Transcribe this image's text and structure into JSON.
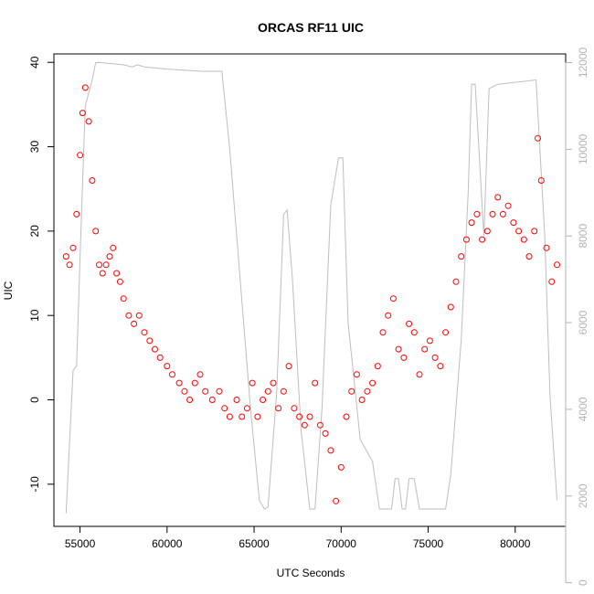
{
  "chart_data": {
    "type": "scatter",
    "title": "ORCAS RF11 UIC",
    "xlabel": "UTC Seconds",
    "ylabel": "UIC",
    "xlim": [
      53500,
      82900
    ],
    "ylim": [
      -15,
      41
    ],
    "y2lim": [
      1300,
      12200
    ],
    "x_ticks": [
      55000,
      60000,
      65000,
      70000,
      75000,
      80000
    ],
    "x_tick_labels": [
      "55000",
      "60000",
      "65000",
      "70000",
      "75000",
      "80000"
    ],
    "y_ticks": [
      -10,
      0,
      10,
      20,
      30,
      40
    ],
    "y_tick_labels": [
      "-10",
      "0",
      "10",
      "20",
      "30",
      "40"
    ],
    "y2_ticks": [
      0,
      2000,
      4000,
      6000,
      8000,
      10000,
      12000
    ],
    "y2_tick_labels": [
      "0",
      "2000",
      "4000",
      "6000",
      "8000",
      "10000",
      "12000"
    ],
    "colors": {
      "uic": "#ff0000",
      "altitude": "#bebebe",
      "axis": "#000000",
      "axis2": "#b3b3b3"
    },
    "series": [
      {
        "marker": "open-circle",
        "axis": "left",
        "x": [
          54200,
          54400,
          54600,
          54800,
          55000,
          55150,
          55300,
          55500,
          55700,
          55900,
          56100,
          56300,
          56500,
          56700,
          56900,
          57100,
          57300,
          57500,
          57800,
          58100,
          58400,
          58700,
          59000,
          59300,
          59600,
          60000,
          60300,
          60700,
          61000,
          61300,
          61600,
          61900,
          62200,
          62600,
          63000,
          63300,
          63600,
          64000,
          64300,
          64600,
          64900,
          65200,
          65500,
          65800,
          66100,
          66400,
          66700,
          67000,
          67300,
          67600,
          67900,
          68200,
          68500,
          68800,
          69100,
          69400,
          69700,
          70000,
          70300,
          70600,
          70900,
          71200,
          71500,
          71800,
          72100,
          72400,
          72700,
          73000,
          73300,
          73600,
          73900,
          74200,
          74500,
          74800,
          75100,
          75400,
          75700,
          76000,
          76300,
          76600,
          76900,
          77200,
          77500,
          77800,
          78100,
          78400,
          78700,
          79000,
          79300,
          79600,
          79900,
          80200,
          80500,
          80800,
          81100,
          81300,
          81500,
          81800,
          82100,
          82400
        ],
        "y": [
          17,
          16,
          18,
          22,
          29,
          34,
          37,
          33,
          26,
          20,
          16,
          15,
          16,
          17,
          18,
          15,
          14,
          12,
          10,
          9,
          10,
          8,
          7,
          6,
          5,
          4,
          3,
          2,
          1,
          0,
          2,
          3,
          1,
          0,
          1,
          -1,
          -2,
          0,
          -2,
          -1,
          2,
          -2,
          0,
          1,
          2,
          -1,
          1,
          4,
          -1,
          -2,
          -3,
          -2,
          2,
          -3,
          -4,
          -6,
          -12,
          -8,
          -2,
          1,
          3,
          0,
          1,
          2,
          4,
          8,
          10,
          12,
          6,
          5,
          9,
          8,
          3,
          6,
          7,
          5,
          4,
          8,
          11,
          14,
          17,
          19,
          21,
          22,
          19,
          20,
          22,
          24,
          22,
          23,
          21,
          20,
          19,
          17,
          20,
          31,
          26,
          18,
          14,
          16
        ]
      },
      {
        "marker": "line",
        "axis": "right",
        "x": [
          54200,
          54600,
          54800,
          55000,
          55300,
          55700,
          55900,
          56200,
          57500,
          58000,
          58300,
          58700,
          60000,
          62000,
          63150,
          63600,
          64200,
          64800,
          65300,
          65600,
          65800,
          66300,
          66700,
          66900,
          67200,
          67700,
          68200,
          68500,
          68900,
          69400,
          69850,
          70100,
          70400,
          71100,
          71800,
          72200,
          72500,
          72900,
          73100,
          73300,
          73500,
          73700,
          73900,
          74200,
          74500,
          74800,
          75700,
          76000,
          76300,
          76900,
          77300,
          77500,
          77700,
          78200,
          78500,
          79000,
          81200,
          81700,
          82000,
          82400
        ],
        "y": [
          1600,
          4900,
          5000,
          7500,
          11000,
          11600,
          12000,
          12000,
          11950,
          11900,
          11950,
          11900,
          11850,
          11800,
          11800,
          10000,
          7000,
          4000,
          1900,
          1700,
          1750,
          4400,
          8500,
          8600,
          7000,
          3500,
          1700,
          1700,
          4000,
          8700,
          9800,
          9800,
          6000,
          3300,
          2800,
          1700,
          1700,
          1700,
          2400,
          2400,
          1700,
          1700,
          2400,
          2400,
          1700,
          1700,
          1700,
          1700,
          2500,
          5600,
          9000,
          11500,
          11500,
          8000,
          11400,
          11500,
          11600,
          8000,
          4300,
          1900
        ]
      }
    ]
  }
}
